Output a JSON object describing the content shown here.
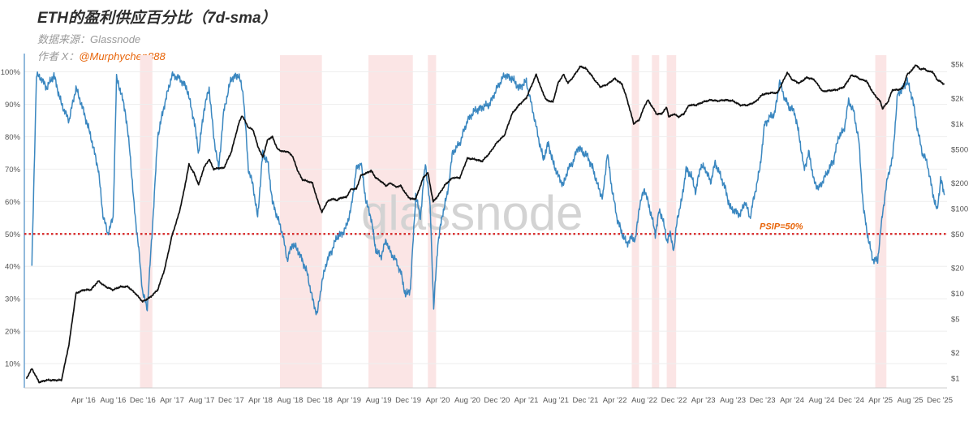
{
  "header": {
    "title": "ETH的盈利供应百分比（7d-sma）",
    "source": "数据来源：Glassnode",
    "author_prefix": "作者 X：",
    "author_handle": "@Murphychen888"
  },
  "watermark": "glassnode",
  "colors": {
    "supply_line": "#3a87c0",
    "price_line": "#111111",
    "threshold": "#d62020",
    "shading": "#fbe5e5",
    "annotation": "#e8650a"
  },
  "chart_data": {
    "type": "line",
    "y_left": {
      "ticks": [
        10,
        20,
        30,
        40,
        50,
        60,
        70,
        80,
        90,
        100
      ],
      "tick_labels": [
        "10%",
        "20%",
        "30%",
        "40%",
        "50%",
        "60%",
        "70%",
        "80%",
        "90%",
        "100%"
      ],
      "ylim": [
        0,
        100
      ]
    },
    "y_right": {
      "scale": "log",
      "ticks": [
        1,
        2,
        5,
        10,
        20,
        50,
        100,
        200,
        500,
        1000,
        2000,
        5000
      ],
      "tick_labels": [
        "$1",
        "$2",
        "$5",
        "$10",
        "$20",
        "$50",
        "$100",
        "$200",
        "$500",
        "$1k",
        "$2k",
        "$5k"
      ]
    },
    "x_ticks": [
      "Apr '16",
      "Aug '16",
      "Dec '16",
      "Apr '17",
      "Aug '17",
      "Dec '17",
      "Apr '18",
      "Aug '18",
      "Dec '18",
      "Apr '19",
      "Aug '19",
      "Dec '19",
      "Apr '20",
      "Aug '20",
      "Dec '20",
      "Apr '21",
      "Aug '21",
      "Dec '21",
      "Apr '22",
      "Aug '22",
      "Dec '22",
      "Apr '23",
      "Aug '23",
      "Dec '23",
      "Apr '24",
      "Aug '24",
      "Dec '24",
      "Apr '25",
      "Aug '25",
      "Dec '25"
    ],
    "series": [
      {
        "key": "supply",
        "axis": "left",
        "t": [
          "2015-09-01",
          "2015-09-20",
          "2015-10-10",
          "2015-11-01",
          "2015-12-01",
          "2016-01-01",
          "2016-02-01",
          "2016-03-01",
          "2016-04-01",
          "2016-05-01",
          "2016-06-01",
          "2016-06-20",
          "2016-07-10",
          "2016-08-01",
          "2016-08-15",
          "2016-09-01",
          "2016-09-20",
          "2016-10-10",
          "2016-10-25",
          "2016-11-15",
          "2016-12-01",
          "2016-12-20",
          "2017-01-10",
          "2017-02-01",
          "2017-03-01",
          "2017-04-01",
          "2017-05-01",
          "2017-06-01",
          "2017-07-01",
          "2017-07-20",
          "2017-08-10",
          "2017-09-01",
          "2017-09-20",
          "2017-10-10",
          "2017-11-01",
          "2017-12-01",
          "2018-01-01",
          "2018-01-20",
          "2018-02-10",
          "2018-03-01",
          "2018-03-20",
          "2018-04-10",
          "2018-05-01",
          "2018-05-20",
          "2018-06-10",
          "2018-07-01",
          "2018-07-20",
          "2018-08-10",
          "2018-09-01",
          "2018-09-20",
          "2018-10-10",
          "2018-11-01",
          "2018-11-20",
          "2018-12-10",
          "2019-01-01",
          "2019-01-20",
          "2019-02-10",
          "2019-03-01",
          "2019-03-20",
          "2019-04-10",
          "2019-05-01",
          "2019-05-20",
          "2019-06-10",
          "2019-07-01",
          "2019-07-20",
          "2019-08-10",
          "2019-09-01",
          "2019-09-20",
          "2019-10-10",
          "2019-11-01",
          "2019-11-20",
          "2019-12-10",
          "2020-01-01",
          "2020-01-20",
          "2020-02-10",
          "2020-03-01",
          "2020-03-15",
          "2020-04-01",
          "2020-04-20",
          "2020-05-10",
          "2020-06-01",
          "2020-07-01",
          "2020-08-01",
          "2020-09-01",
          "2020-10-01",
          "2020-11-01",
          "2020-12-01",
          "2021-01-01",
          "2021-02-01",
          "2021-03-01",
          "2021-04-01",
          "2021-05-01",
          "2021-05-20",
          "2021-06-10",
          "2021-07-01",
          "2021-07-20",
          "2021-08-10",
          "2021-09-01",
          "2021-09-20",
          "2021-10-10",
          "2021-11-01",
          "2021-11-20",
          "2021-12-10",
          "2022-01-01",
          "2022-01-20",
          "2022-02-10",
          "2022-03-01",
          "2022-03-20",
          "2022-04-10",
          "2022-05-01",
          "2022-05-20",
          "2022-06-10",
          "2022-06-25",
          "2022-07-10",
          "2022-08-01",
          "2022-08-15",
          "2022-09-01",
          "2022-09-15",
          "2022-10-01",
          "2022-10-15",
          "2022-11-01",
          "2022-11-15",
          "2022-12-01",
          "2022-12-15",
          "2023-01-01",
          "2023-01-20",
          "2023-02-10",
          "2023-03-01",
          "2023-03-20",
          "2023-04-10",
          "2023-05-01",
          "2023-05-20",
          "2023-06-10",
          "2023-07-01",
          "2023-07-20",
          "2023-08-10",
          "2023-09-01",
          "2023-09-20",
          "2023-10-10",
          "2023-11-01",
          "2023-11-20",
          "2023-12-10",
          "2024-01-01",
          "2024-01-20",
          "2024-02-10",
          "2024-03-01",
          "2024-03-20",
          "2024-04-10",
          "2024-05-01",
          "2024-05-20",
          "2024-06-10",
          "2024-07-01",
          "2024-07-20",
          "2024-08-10",
          "2024-09-01",
          "2024-09-20",
          "2024-10-10",
          "2024-11-01",
          "2024-11-20",
          "2024-12-10",
          "2025-01-01",
          "2025-01-20",
          "2025-02-10",
          "2025-03-01",
          "2025-03-20",
          "2025-04-10",
          "2025-05-01",
          "2025-05-20",
          "2025-06-10",
          "2025-07-01",
          "2025-07-20",
          "2025-08-10",
          "2025-09-01",
          "2025-09-20",
          "2025-10-10",
          "2025-11-01",
          "2025-11-20",
          "2025-12-05",
          "2025-12-20"
        ],
        "v": [
          40,
          99,
          98,
          95,
          99,
          90,
          85,
          95,
          88,
          80,
          70,
          56,
          50,
          55,
          98,
          94,
          88,
          75,
          60,
          45,
          32,
          27,
          52,
          80,
          90,
          99,
          98,
          95,
          85,
          75,
          88,
          95,
          80,
          70,
          88,
          98,
          99,
          93,
          70,
          65,
          55,
          75,
          72,
          60,
          55,
          50,
          42,
          47,
          45,
          42,
          38,
          30,
          25,
          35,
          42,
          45,
          49,
          50,
          52,
          58,
          70,
          72,
          60,
          55,
          45,
          43,
          48,
          44,
          42,
          38,
          31,
          33,
          62,
          55,
          72,
          58,
          27,
          47,
          56,
          62,
          75,
          78,
          85,
          88,
          89,
          90,
          95,
          99,
          98,
          95,
          97,
          87,
          80,
          73,
          78,
          72,
          68,
          65,
          70,
          72,
          77,
          75,
          74,
          70,
          65,
          61,
          75,
          64,
          55,
          50,
          47,
          49,
          48,
          58,
          64,
          60,
          55,
          50,
          57,
          55,
          48,
          50,
          45,
          55,
          60,
          70,
          68,
          63,
          71,
          70,
          66,
          72,
          68,
          64,
          58,
          57,
          56,
          60,
          55,
          63,
          70,
          84,
          86,
          87,
          97,
          92,
          89,
          88,
          80,
          70,
          75,
          66,
          64,
          67,
          70,
          73,
          80,
          82,
          91,
          88,
          79,
          58,
          48,
          42,
          42,
          57,
          68,
          73,
          93,
          95,
          97,
          92,
          82,
          75,
          72,
          63,
          57,
          67,
          62
        ],
        "y_unit": "%"
      },
      {
        "key": "price",
        "axis": "right",
        "t": [
          "2015-08-10",
          "2015-09-01",
          "2015-10-01",
          "2015-11-01",
          "2015-12-01",
          "2016-01-01",
          "2016-02-01",
          "2016-03-01",
          "2016-04-01",
          "2016-05-01",
          "2016-06-01",
          "2016-07-01",
          "2016-08-01",
          "2016-09-01",
          "2016-10-01",
          "2016-11-01",
          "2016-12-01",
          "2017-01-01",
          "2017-02-01",
          "2017-03-01",
          "2017-04-01",
          "2017-05-01",
          "2017-05-20",
          "2017-06-10",
          "2017-07-01",
          "2017-07-20",
          "2017-08-10",
          "2017-09-01",
          "2017-09-20",
          "2017-10-10",
          "2017-11-01",
          "2017-12-01",
          "2018-01-01",
          "2018-01-15",
          "2018-02-10",
          "2018-03-01",
          "2018-03-20",
          "2018-04-10",
          "2018-05-01",
          "2018-05-20",
          "2018-06-10",
          "2018-07-01",
          "2018-07-20",
          "2018-08-10",
          "2018-09-01",
          "2018-09-20",
          "2018-10-10",
          "2018-11-01",
          "2018-11-20",
          "2018-12-10",
          "2019-01-01",
          "2019-01-20",
          "2019-02-10",
          "2019-03-01",
          "2019-03-20",
          "2019-04-10",
          "2019-05-01",
          "2019-05-20",
          "2019-06-10",
          "2019-07-01",
          "2019-07-20",
          "2019-08-10",
          "2019-09-01",
          "2019-09-20",
          "2019-10-10",
          "2019-11-01",
          "2019-11-20",
          "2019-12-10",
          "2020-01-01",
          "2020-02-01",
          "2020-02-20",
          "2020-03-13",
          "2020-04-01",
          "2020-05-01",
          "2020-06-01",
          "2020-07-01",
          "2020-08-01",
          "2020-09-01",
          "2020-10-01",
          "2020-11-01",
          "2020-12-01",
          "2021-01-01",
          "2021-02-01",
          "2021-03-01",
          "2021-04-01",
          "2021-05-12",
          "2021-06-01",
          "2021-06-22",
          "2021-07-20",
          "2021-08-10",
          "2021-09-01",
          "2021-09-20",
          "2021-10-10",
          "2021-11-09",
          "2021-12-01",
          "2021-12-20",
          "2022-01-10",
          "2022-02-01",
          "2022-03-01",
          "2022-04-01",
          "2022-05-01",
          "2022-05-20",
          "2022-06-18",
          "2022-07-10",
          "2022-08-01",
          "2022-08-15",
          "2022-09-01",
          "2022-09-20",
          "2022-10-10",
          "2022-11-01",
          "2022-11-10",
          "2022-12-01",
          "2022-12-20",
          "2023-01-10",
          "2023-02-01",
          "2023-03-01",
          "2023-04-01",
          "2023-05-01",
          "2023-06-01",
          "2023-07-01",
          "2023-08-01",
          "2023-09-01",
          "2023-10-01",
          "2023-11-01",
          "2023-12-01",
          "2024-01-01",
          "2024-02-01",
          "2024-03-12",
          "2024-04-01",
          "2024-05-01",
          "2024-06-01",
          "2024-07-01",
          "2024-08-05",
          "2024-09-01",
          "2024-10-01",
          "2024-11-01",
          "2024-12-01",
          "2024-12-20",
          "2025-01-10",
          "2025-02-01",
          "2025-03-01",
          "2025-04-01",
          "2025-04-09",
          "2025-05-01",
          "2025-05-20",
          "2025-06-10",
          "2025-07-01",
          "2025-07-20",
          "2025-08-10",
          "2025-08-24",
          "2025-09-10",
          "2025-10-01",
          "2025-10-15",
          "2025-11-01",
          "2025-11-20",
          "2025-12-05",
          "2025-12-20"
        ],
        "v": [
          1.0,
          1.3,
          0.9,
          0.95,
          0.95,
          0.95,
          2.5,
          10,
          11,
          11,
          14,
          12,
          11,
          12,
          12,
          10,
          8,
          9,
          11,
          19,
          48,
          90,
          160,
          330,
          260,
          190,
          300,
          380,
          290,
          300,
          300,
          460,
          1000,
          1250,
          900,
          850,
          550,
          400,
          650,
          700,
          500,
          470,
          470,
          420,
          280,
          220,
          210,
          200,
          130,
          90,
          120,
          130,
          125,
          135,
          135,
          170,
          170,
          245,
          260,
          280,
          230,
          210,
          185,
          200,
          180,
          185,
          150,
          130,
          130,
          230,
          265,
          120,
          140,
          190,
          230,
          230,
          390,
          380,
          360,
          450,
          600,
          730,
          1300,
          1650,
          2000,
          3800,
          2600,
          1900,
          1800,
          3000,
          3800,
          3000,
          3500,
          4700,
          4500,
          3900,
          3200,
          2700,
          2900,
          3400,
          2900,
          2000,
          1000,
          1100,
          1600,
          1900,
          1600,
          1300,
          1300,
          1550,
          1200,
          1300,
          1200,
          1300,
          1650,
          1650,
          1800,
          1900,
          1850,
          1900,
          1850,
          1650,
          1650,
          1800,
          2200,
          2300,
          2300,
          4000,
          3300,
          3000,
          3500,
          3300,
          2400,
          2450,
          2500,
          2700,
          3700,
          3600,
          3300,
          3200,
          2300,
          1800,
          1500,
          1800,
          2500,
          2500,
          2600,
          3800,
          4300,
          4950,
          4400,
          4400,
          4100,
          4100,
          3300,
          3100,
          2900
        ],
        "y_unit": "$"
      }
    ],
    "shaded_periods": [
      [
        "2016-11-20",
        "2017-01-10"
      ],
      [
        "2018-06-20",
        "2018-12-10"
      ],
      [
        "2019-06-20",
        "2019-12-20"
      ],
      [
        "2020-02-20",
        "2020-03-25"
      ],
      [
        "2022-06-10",
        "2022-07-10"
      ],
      [
        "2022-09-01",
        "2022-10-01"
      ],
      [
        "2022-11-01",
        "2022-12-10"
      ],
      [
        "2025-03-10",
        "2025-04-25"
      ]
    ],
    "threshold": {
      "y": 50,
      "label": "PSIP=50%"
    }
  }
}
